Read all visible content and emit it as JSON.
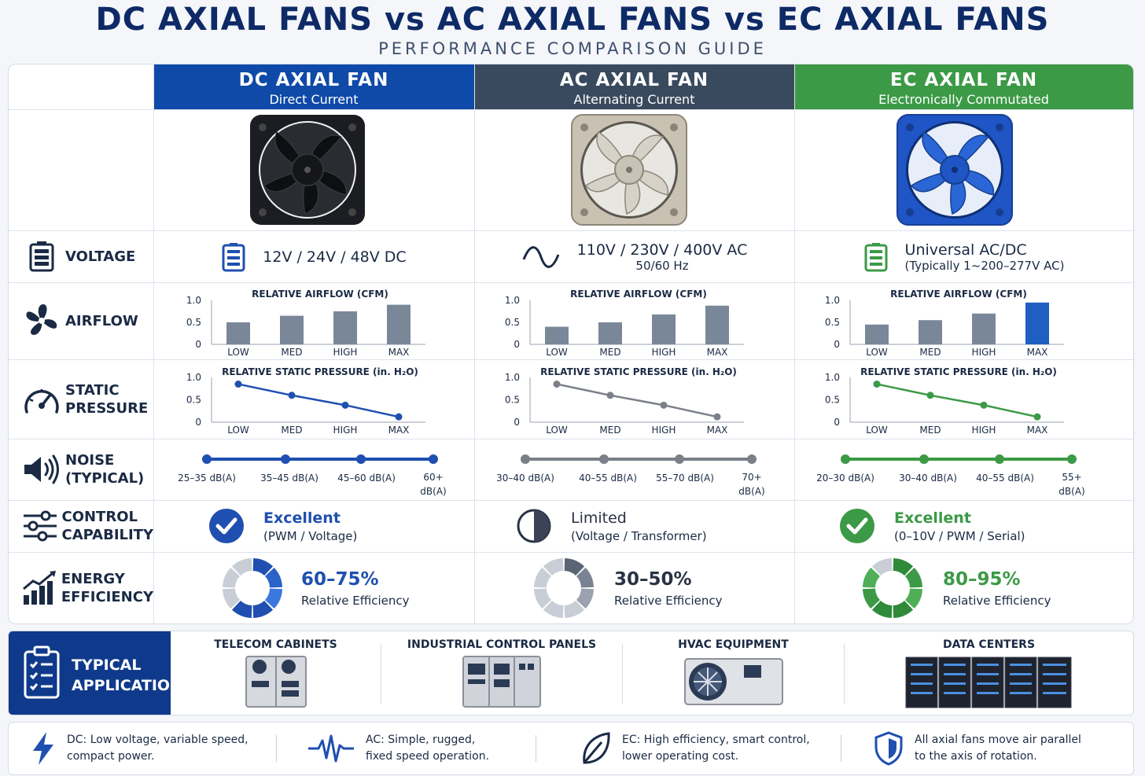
{
  "title": "DC AXIAL FANS vs AC AXIAL FANS vs EC AXIAL FANS",
  "subtitle": "PERFORMANCE COMPARISON GUIDE",
  "columns": [
    {
      "name": "DC AXIAL FAN",
      "sub": "Direct Current",
      "color": "#0f4aa8"
    },
    {
      "name": "AC AXIAL FAN",
      "sub": "Alternating Current",
      "color": "#3a4a5e"
    },
    {
      "name": "EC AXIAL FAN",
      "sub": "Electronically Commutated",
      "color": "#3c9a46"
    }
  ],
  "rows": {
    "voltage": "VOLTAGE",
    "airflow": "AIRFLOW",
    "static_pressure": [
      "STATIC",
      "PRESSURE"
    ],
    "noise": [
      "NOISE",
      "(TYPICAL)"
    ],
    "control": [
      "CONTROL",
      "CAPABILITY"
    ],
    "energy": [
      "ENERGY",
      "EFFICIENCY"
    ]
  },
  "voltage": {
    "dc": "12V / 24V / 48V DC",
    "ac": "110V / 230V / 400V AC",
    "ac_sub": "50/60 Hz",
    "ec": "Universal AC/DC",
    "ec_sub": "(Typically 1~200–277V AC)"
  },
  "control": {
    "dc": {
      "rating": "Excellent",
      "detail": "(PWM / Voltage)"
    },
    "ac": {
      "rating": "Limited",
      "detail": "(Voltage / Transformer)"
    },
    "ec": {
      "rating": "Excellent",
      "detail": "(0–10V / PWM / Serial)"
    }
  },
  "efficiency": {
    "dc": {
      "value": "60–75%",
      "label": "Relative Efficiency",
      "level": 0.675
    },
    "ac": {
      "value": "30–50%",
      "label": "Relative Efficiency",
      "level": 0.4
    },
    "ec": {
      "value": "80–95%",
      "label": "Relative Efficiency",
      "level": 0.875
    }
  },
  "chart_data": [
    {
      "type": "bar",
      "title": "RELATIVE AIRFLOW (CFM)",
      "categories": [
        "LOW",
        "MED",
        "HIGH",
        "MAX"
      ],
      "values": [
        0.5,
        0.65,
        0.75,
        0.9
      ],
      "yticks": [
        "1.0",
        "0.5",
        "0"
      ],
      "ylim": [
        0,
        1
      ],
      "color": "#7a8799"
    },
    {
      "type": "bar",
      "title": "RELATIVE AIRFLOW (CFM)",
      "categories": [
        "LOW",
        "MED",
        "HIGH",
        "MAX"
      ],
      "values": [
        0.4,
        0.5,
        0.68,
        0.88
      ],
      "yticks": [
        "1.0",
        "0.5",
        "0"
      ],
      "ylim": [
        0,
        1
      ],
      "color": "#7a8799"
    },
    {
      "type": "bar",
      "title": "RELATIVE AIRFLOW (CFM)",
      "categories": [
        "LOW",
        "MED",
        "HIGH",
        "MAX"
      ],
      "values": [
        0.45,
        0.55,
        0.7,
        0.95
      ],
      "yticks": [
        "1.0",
        "0.5",
        "0"
      ],
      "ylim": [
        0,
        1
      ],
      "color": "#7a8799",
      "highlight_color": "#1f5fc2"
    },
    {
      "type": "line",
      "title": "RELATIVE STATIC PRESSURE (in. H₂O)",
      "categories": [
        "LOW",
        "MED",
        "HIGH",
        "MAX"
      ],
      "values": [
        0.85,
        0.6,
        0.38,
        0.12
      ],
      "yticks": [
        "1.0",
        "0.5",
        "0"
      ],
      "ylim": [
        0,
        1
      ],
      "color": "#1f4fb0"
    },
    {
      "type": "line",
      "title": "RELATIVE STATIC PRESSURE (in. H₂O)",
      "categories": [
        "LOW",
        "MED",
        "HIGH",
        "MAX"
      ],
      "values": [
        0.85,
        0.6,
        0.38,
        0.12
      ],
      "yticks": [
        "1.0",
        "0.5",
        "0"
      ],
      "ylim": [
        0,
        1
      ],
      "color": "#7a7f88"
    },
    {
      "type": "line",
      "title": "RELATIVE STATIC PRESSURE (in. H₂O)",
      "categories": [
        "LOW",
        "MED",
        "HIGH",
        "MAX"
      ],
      "values": [
        0.85,
        0.6,
        0.38,
        0.12
      ],
      "yticks": [
        "1.0",
        "0.5",
        "0"
      ],
      "ylim": [
        0,
        1
      ],
      "color": "#3c9a46"
    }
  ],
  "noise": {
    "dc": {
      "color": "#1f4fb0",
      "labels": [
        "25–35 dB(A)",
        "35–45 dB(A)",
        "45–60 dB(A)",
        "60+",
        "dB(A)"
      ]
    },
    "ac": {
      "color": "#7a7f88",
      "labels": [
        "30–40 dB(A)",
        "40–55 dB(A)",
        "55–70 dB(A)",
        "70+",
        "dB(A)"
      ]
    },
    "ec": {
      "color": "#3c9a46",
      "labels": [
        "20–30 dB(A)",
        "30–40 dB(A)",
        "40–55 dB(A)",
        "55+",
        "dB(A)"
      ]
    }
  },
  "applications": {
    "heading": [
      "TYPICAL",
      "APPLICATIONS"
    ],
    "items": [
      "TELECOM CABINETS",
      "INDUSTRIAL CONTROL PANELS",
      "HVAC EQUIPMENT",
      "DATA CENTERS"
    ]
  },
  "notes": [
    {
      "icon": "lightning-icon",
      "lines": [
        "DC: Low voltage, variable speed,",
        "compact power."
      ]
    },
    {
      "icon": "pulse-icon",
      "lines": [
        "AC: Simple, rugged,",
        "fixed speed operation."
      ]
    },
    {
      "icon": "leaf-icon",
      "lines": [
        "EC: High efficiency, smart control,",
        "lower operating cost."
      ]
    },
    {
      "icon": "shield-icon",
      "lines": [
        "All axial fans move air parallel",
        "to the axis of rotation."
      ]
    }
  ]
}
